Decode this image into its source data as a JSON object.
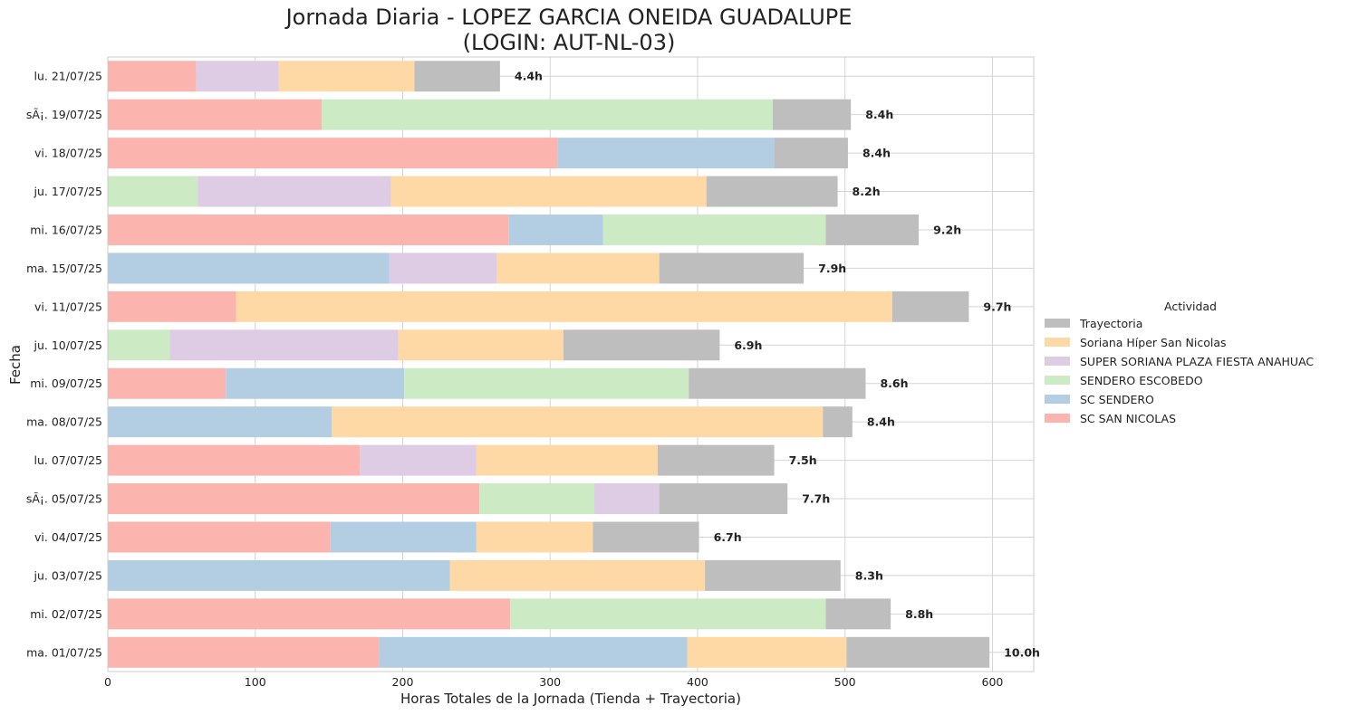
{
  "chart_data": {
    "type": "bar",
    "orientation": "horizontal",
    "stacked": true,
    "title_line1": "Jornada Diaria - LOPEZ GARCIA ONEIDA GUADALUPE",
    "title_line2": "(LOGIN: AUT-NL-03)",
    "xlabel": "Horas Totales de la Jornada (Tienda + Trayectoria)",
    "ylabel": "Fecha",
    "xlim": [
      0,
      628
    ],
    "xticks": [
      0,
      100,
      200,
      300,
      400,
      500,
      600
    ],
    "grid": true,
    "legend_title": "Actividad",
    "legend_placement": "right",
    "stack_order": [
      "SC SAN NICOLAS",
      "SC SENDERO",
      "SENDERO ESCOBEDO",
      "SUPER SORIANA PLAZA FIESTA ANAHUAC",
      "Soriana Híper San Nicolas",
      "Trayectoria"
    ],
    "legend_entries": [
      "Trayectoria",
      "Soriana Híper San Nicolas",
      "SUPER SORIANA PLAZA FIESTA ANAHUAC",
      "SENDERO ESCOBEDO",
      "SC SENDERO",
      "SC SAN NICOLAS"
    ],
    "colors": {
      "SC SAN NICOLAS": "#fbb4ae",
      "SC SENDERO": "#b3cde3",
      "SENDERO ESCOBEDO": "#ccebc5",
      "SUPER SORIANA PLAZA FIESTA ANAHUAC": "#decbe4",
      "Soriana Híper San Nicolas": "#fed9a6",
      "Trayectoria": "#bebebe"
    },
    "categories": [
      "lu. 21/07/25",
      "sÃ¡. 19/07/25",
      "vi. 18/07/25",
      "ju. 17/07/25",
      "mi. 16/07/25",
      "ma. 15/07/25",
      "vi. 11/07/25",
      "ju. 10/07/25",
      "mi. 09/07/25",
      "ma. 08/07/25",
      "lu. 07/07/25",
      "sÃ¡. 05/07/25",
      "vi. 04/07/25",
      "ju. 03/07/25",
      "mi. 02/07/25",
      "ma. 01/07/25"
    ],
    "series": [
      {
        "name": "SC SAN NICOLAS",
        "values": [
          60,
          145,
          305,
          0,
          272,
          0,
          87,
          0,
          80,
          0,
          171,
          252,
          151,
          0,
          273,
          184
        ]
      },
      {
        "name": "SC SENDERO",
        "values": [
          0,
          0,
          147,
          0,
          64,
          191,
          0,
          0,
          121,
          152,
          0,
          0,
          99,
          232,
          0,
          209
        ]
      },
      {
        "name": "SENDERO ESCOBEDO",
        "values": [
          0,
          306,
          0,
          61,
          151,
          0,
          0,
          42,
          193,
          0,
          0,
          78,
          0,
          0,
          214,
          0
        ]
      },
      {
        "name": "SUPER SORIANA PLAZA FIESTA ANAHUAC",
        "values": [
          56,
          0,
          0,
          131,
          0,
          73,
          0,
          155,
          0,
          0,
          79,
          44,
          0,
          0,
          0,
          0
        ]
      },
      {
        "name": "Soriana Híper San Nicolas",
        "values": [
          92,
          0,
          0,
          214,
          0,
          110,
          445,
          112,
          0,
          333,
          123,
          0,
          79,
          173,
          0,
          108
        ]
      },
      {
        "name": "Trayectoria",
        "values": [
          58,
          53,
          50,
          89,
          63,
          98,
          52,
          106,
          120,
          20,
          79,
          87,
          72,
          92,
          44,
          97
        ]
      }
    ],
    "total_labels": [
      "4.4h",
      "8.4h",
      "8.4h",
      "8.2h",
      "9.2h",
      "7.9h",
      "9.7h",
      "6.9h",
      "8.6h",
      "8.4h",
      "7.5h",
      "7.7h",
      "6.7h",
      "8.3h",
      "8.8h",
      "10.0h"
    ]
  }
}
